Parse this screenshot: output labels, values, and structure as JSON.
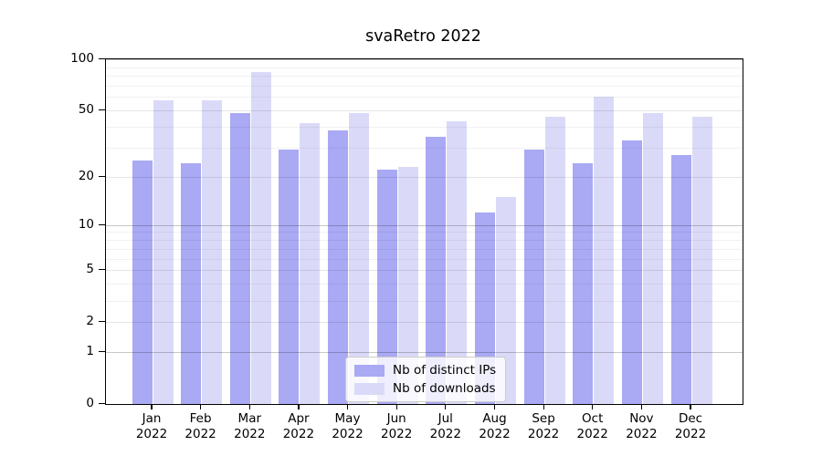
{
  "chart_data": {
    "type": "bar",
    "title": "svaRetro 2022",
    "months": [
      "Jan",
      "Feb",
      "Mar",
      "Apr",
      "May",
      "Jun",
      "Jul",
      "Aug",
      "Sep",
      "Oct",
      "Nov",
      "Dec"
    ],
    "year": "2022",
    "series": [
      {
        "name": "Nb of distinct IPs",
        "color": "#a9a9f4",
        "values": [
          25,
          24,
          48,
          29,
          38,
          22,
          35,
          12,
          29,
          24,
          33,
          27
        ]
      },
      {
        "name": "Nb of downloads",
        "color": "#dadaf8",
        "values": [
          57,
          57,
          84,
          42,
          48,
          23,
          43,
          15,
          46,
          60,
          48,
          46
        ]
      }
    ],
    "y_axis": {
      "scale": "log1p",
      "max": 100,
      "ticks": [
        100,
        50,
        20,
        10,
        5,
        2,
        1,
        0
      ],
      "decade_ticks": [
        100,
        10,
        1
      ],
      "minor_ticks": [
        3,
        4,
        6,
        7,
        8,
        9,
        30,
        40,
        60,
        70,
        80,
        90
      ]
    },
    "legend_position": "bottom-center-inside",
    "grid": true
  }
}
